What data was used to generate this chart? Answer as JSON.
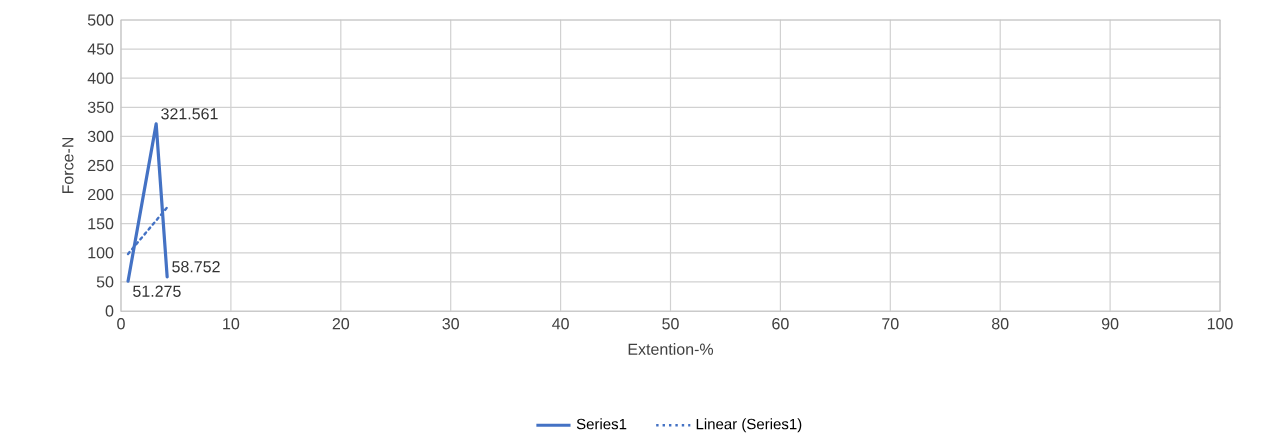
{
  "chart_data": {
    "type": "line",
    "xlabel": "Extention-%",
    "ylabel": "Force-N",
    "xlim": [
      0,
      100
    ],
    "xticks": [
      0,
      10,
      20,
      30,
      40,
      50,
      60,
      70,
      80,
      90,
      100
    ],
    "ylim": [
      0,
      500
    ],
    "yticks": [
      0,
      50,
      100,
      150,
      200,
      250,
      300,
      350,
      400,
      450,
      500
    ],
    "grid": true,
    "legend": "bottom",
    "series": [
      {
        "name": "Series1",
        "color": "#4472c4",
        "x": [
          0.64,
          3.2,
          4.2
        ],
        "values": [
          51.275,
          321.561,
          58.752
        ],
        "line_style": "solid",
        "data_labels": true
      },
      {
        "name": "Linear (Series1)",
        "color": "#4472c4",
        "x": [
          0.64,
          4.2
        ],
        "values": [
          98,
          178
        ],
        "line_style": "dotted"
      }
    ]
  }
}
